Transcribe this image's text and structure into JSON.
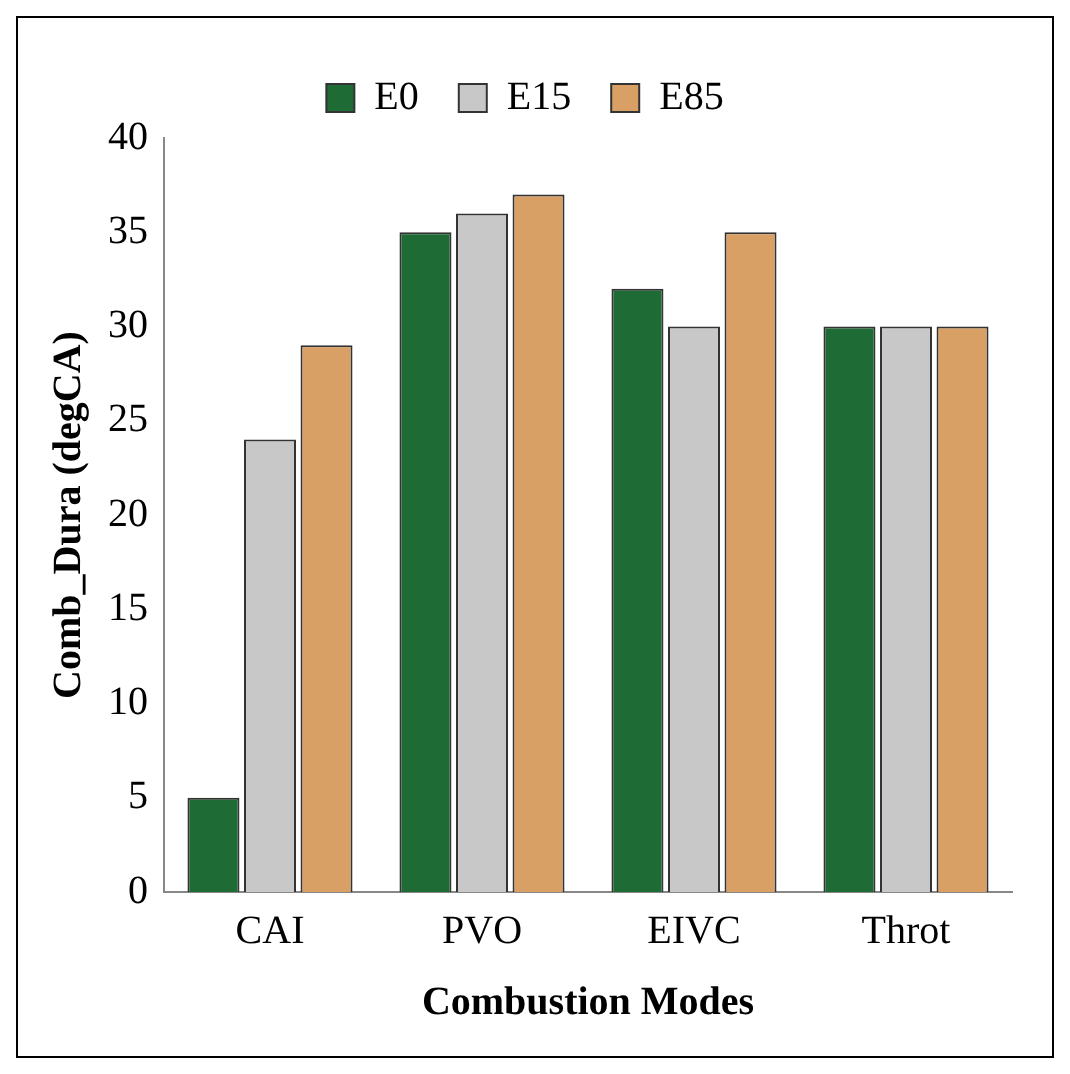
{
  "chart_data": {
    "type": "bar",
    "xlabel": "Combustion Modes",
    "ylabel": "Comb_Dura (degCA)",
    "categories": [
      "CAI",
      "PVO",
      "EIVC",
      "Throt"
    ],
    "series": [
      {
        "name": "E0",
        "color": "#1f6b35",
        "values": [
          5,
          35,
          32,
          30
        ]
      },
      {
        "name": "E15",
        "color": "#c8c8c8",
        "values": [
          24,
          36,
          30,
          30
        ]
      },
      {
        "name": "E85",
        "color": "#d9a066",
        "values": [
          29,
          37,
          35,
          30
        ]
      }
    ],
    "ylim": [
      0,
      40
    ],
    "yticks": [
      0,
      5,
      10,
      15,
      20,
      25,
      30,
      35,
      40
    ],
    "grid": false,
    "legend": "top"
  }
}
